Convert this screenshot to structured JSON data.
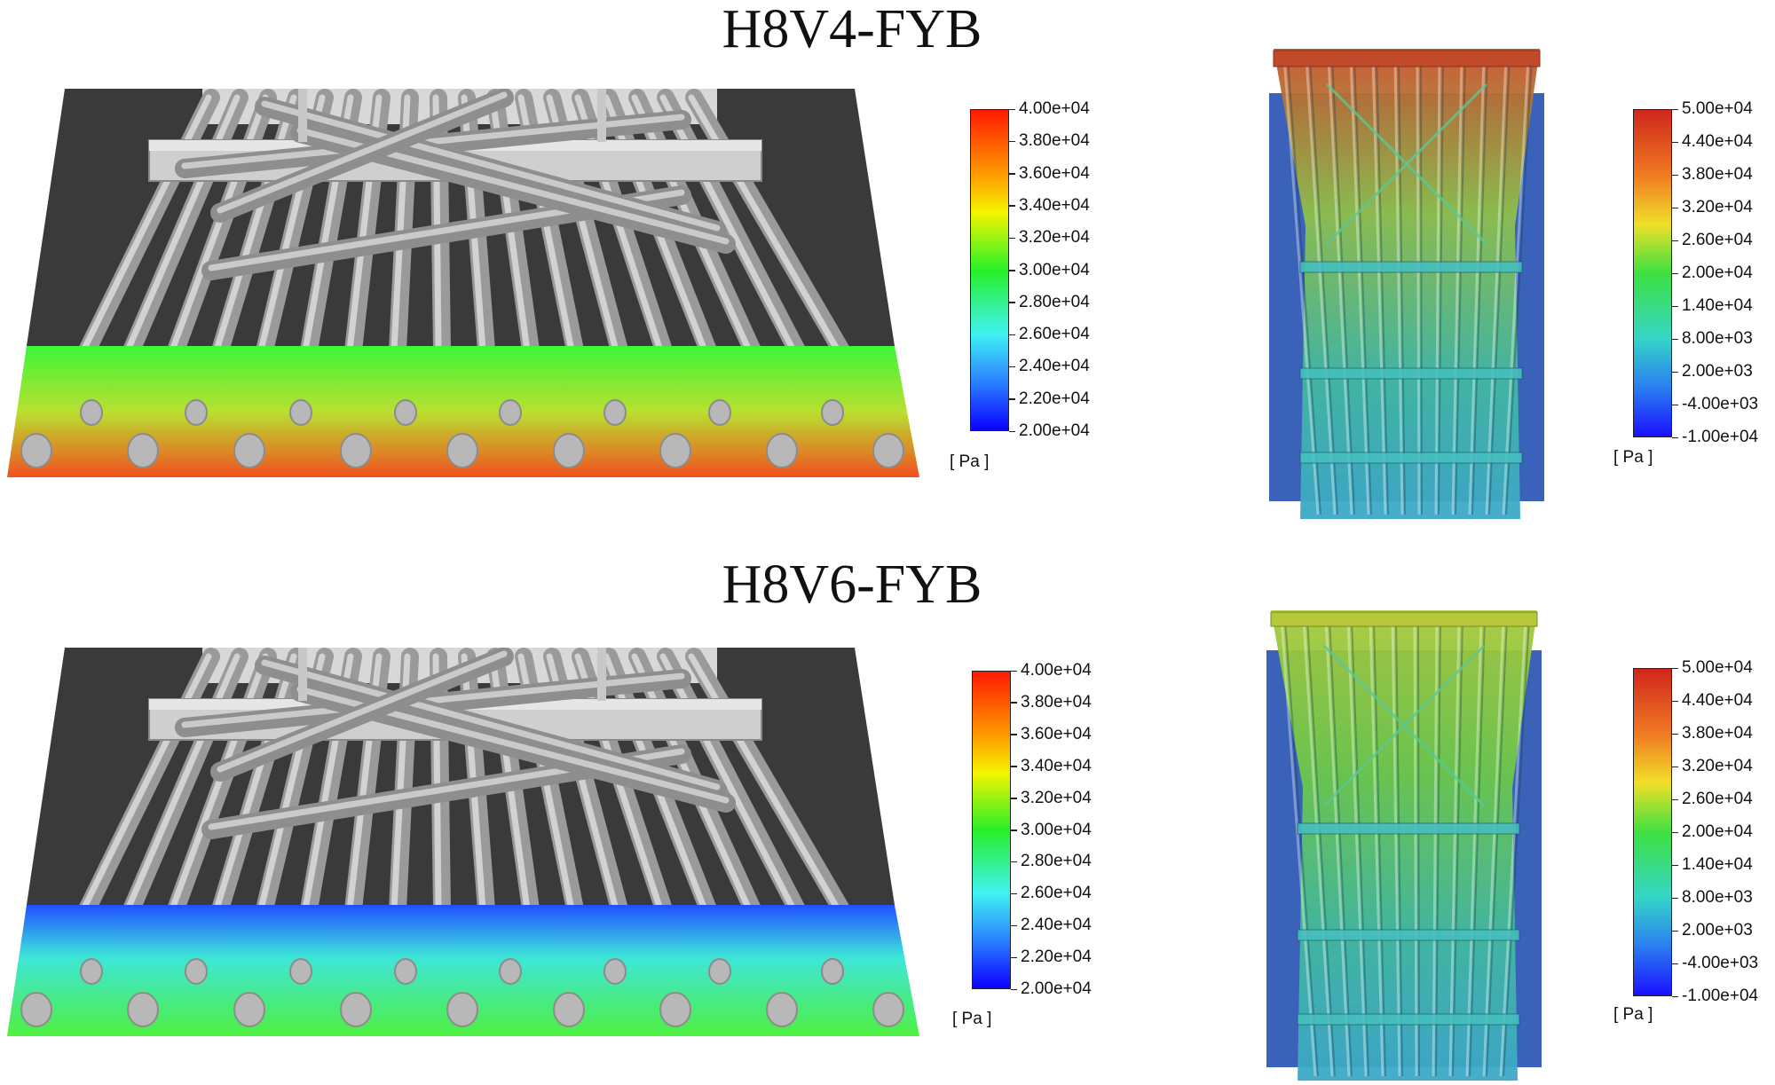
{
  "panels": [
    {
      "id": "h8v4",
      "title": "H8V4-FYB",
      "legend_left": {
        "labels": [
          "4.00e+04",
          "3.80e+04",
          "3.60e+04",
          "3.40e+04",
          "3.20e+04",
          "3.00e+04",
          "2.80e+04",
          "2.60e+04",
          "2.40e+04",
          "2.20e+04",
          "2.00e+04"
        ],
        "unit": "[ Pa ]"
      },
      "legend_right": {
        "labels": [
          "5.00e+04",
          "4.40e+04",
          "3.80e+04",
          "3.20e+04",
          "2.60e+04",
          "2.00e+04",
          "1.40e+04",
          "8.00e+03",
          "2.00e+03",
          "-4.00e+03",
          "-1.00e+04"
        ],
        "unit": "[ Pa ]"
      },
      "surface_colors": {
        "top": "#3df53a",
        "mid": "#b9e030",
        "bottom": "#f25020"
      },
      "frame_top_color": "#c8502a"
    },
    {
      "id": "h8v6",
      "title": "H8V6-FYB",
      "legend_left": {
        "labels": [
          "4.00e+04",
          "3.80e+04",
          "3.60e+04",
          "3.40e+04",
          "3.20e+04",
          "3.00e+04",
          "2.80e+04",
          "2.60e+04",
          "2.40e+04",
          "2.20e+04",
          "2.00e+04"
        ],
        "unit": "[ Pa ]"
      },
      "legend_right": {
        "labels": [
          "5.00e+04",
          "4.40e+04",
          "3.80e+04",
          "3.20e+04",
          "2.60e+04",
          "2.00e+04",
          "1.40e+04",
          "8.00e+03",
          "2.00e+03",
          "-4.00e+03",
          "-1.00e+04"
        ],
        "unit": "[ Pa ]"
      },
      "surface_colors": {
        "top": "#2050ff",
        "mid": "#3ee6d8",
        "bottom": "#50f040"
      },
      "frame_top_color": "#a8c83a"
    }
  ]
}
